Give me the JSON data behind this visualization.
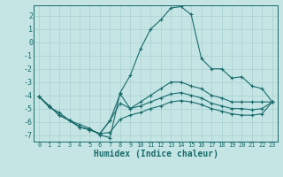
{
  "xlabel": "Humidex (Indice chaleur)",
  "background_color": "#c5e5e5",
  "grid_color": "#a8d0d0",
  "line_color": "#1a6b6b",
  "xlim": [
    -0.5,
    23.5
  ],
  "ylim": [
    -7.5,
    2.8
  ],
  "yticks": [
    2,
    1,
    0,
    -1,
    -2,
    -3,
    -4,
    -5,
    -6,
    -7
  ],
  "xticks": [
    0,
    1,
    2,
    3,
    4,
    5,
    6,
    7,
    8,
    9,
    10,
    11,
    12,
    13,
    14,
    15,
    16,
    17,
    18,
    19,
    20,
    21,
    22,
    23
  ],
  "lines": [
    [
      -4.1,
      -4.9,
      -5.3,
      -5.9,
      -6.2,
      -6.5,
      -7.0,
      -7.2,
      -3.8,
      -2.5,
      -0.5,
      1.0,
      1.7,
      2.6,
      2.7,
      2.1,
      -1.2,
      -2.0,
      -2.0,
      -2.7,
      -2.6,
      -3.3,
      -3.5,
      -4.5
    ],
    [
      -4.1,
      -4.8,
      -5.5,
      -5.9,
      -6.4,
      -6.6,
      -6.9,
      -5.9,
      -3.9,
      -5.0,
      -4.5,
      -4.0,
      -3.5,
      -3.0,
      -3.0,
      -3.3,
      -3.5,
      -4.0,
      -4.2,
      -4.5,
      -4.5,
      -4.5,
      -4.5,
      -4.5
    ],
    [
      -4.1,
      -4.8,
      -5.5,
      -5.9,
      -6.4,
      -6.6,
      -6.9,
      -5.9,
      -4.6,
      -5.0,
      -4.8,
      -4.5,
      -4.2,
      -3.9,
      -3.8,
      -4.0,
      -4.2,
      -4.6,
      -4.8,
      -5.0,
      -5.0,
      -5.1,
      -5.0,
      -4.5
    ],
    [
      -4.1,
      -4.8,
      -5.5,
      -5.9,
      -6.4,
      -6.6,
      -6.9,
      -6.8,
      -5.8,
      -5.5,
      -5.3,
      -5.0,
      -4.8,
      -4.5,
      -4.4,
      -4.5,
      -4.7,
      -5.0,
      -5.2,
      -5.4,
      -5.5,
      -5.5,
      -5.4,
      -4.5
    ]
  ]
}
